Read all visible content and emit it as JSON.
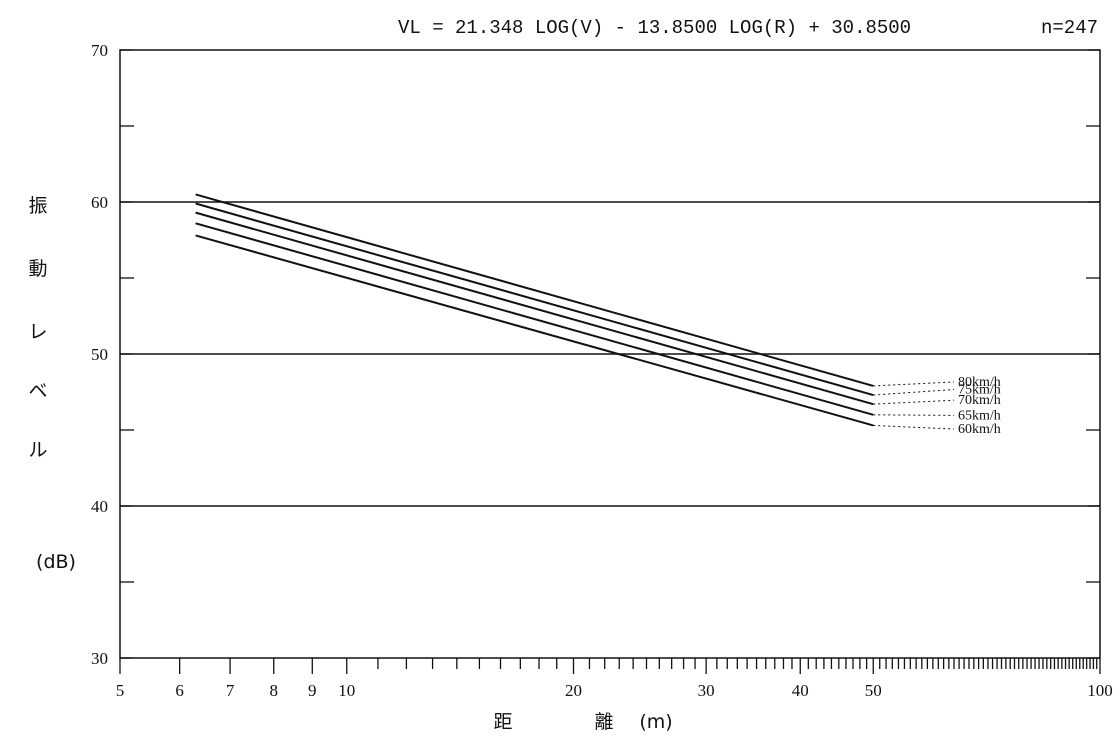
{
  "chart_data": {
    "type": "line",
    "title": "",
    "equation": "VL = 21.348 LOG(V) - 13.8500 LOG(R) + 30.8500",
    "sample_count": "n=247",
    "ylabel": [
      "振",
      "動",
      "レ",
      "ベ",
      "ル"
    ],
    "yunit": "(dB)",
    "xlabel": [
      "距",
      "離",
      "(m)"
    ],
    "x_scale": "log",
    "xlim": [
      5,
      100
    ],
    "ylim": [
      30,
      70
    ],
    "x_ticks": [
      5,
      6,
      7,
      8,
      9,
      10,
      20,
      30,
      40,
      50,
      100
    ],
    "x_tick_labels": [
      "5",
      "6",
      "7",
      "8",
      "9",
      "10",
      "20",
      "30",
      "40",
      "50",
      "100"
    ],
    "y_ticks": [
      30,
      40,
      50,
      60,
      70
    ],
    "y_tick_labels": [
      "30",
      "40",
      "50",
      "60",
      "70"
    ],
    "gridlines_y": [
      40,
      50,
      60
    ],
    "series": [
      {
        "name": "80km/h",
        "x": [
          6.3,
          50
        ],
        "y": [
          60.5,
          47.9
        ],
        "label_y": 47.9
      },
      {
        "name": "75km/h",
        "x": [
          6.3,
          50
        ],
        "y": [
          59.9,
          47.3
        ],
        "label_y": 47.4
      },
      {
        "name": "70km/h",
        "x": [
          6.3,
          50
        ],
        "y": [
          59.3,
          46.7
        ],
        "label_y": 46.7
      },
      {
        "name": "65km/h",
        "x": [
          6.3,
          50
        ],
        "y": [
          58.6,
          46.0
        ],
        "label_y": 45.7
      },
      {
        "name": "60km/h",
        "x": [
          6.3,
          50
        ],
        "y": [
          57.8,
          45.3
        ],
        "label_y": 44.8
      }
    ]
  }
}
